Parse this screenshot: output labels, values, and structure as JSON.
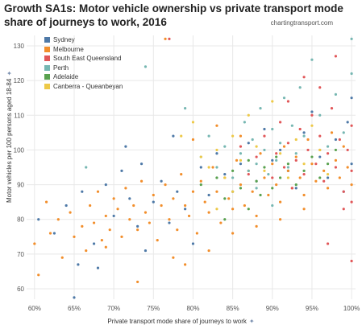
{
  "title": "Growth SA1s: Motor vehicle ownership vs private transport mode share of journeys to work, 2016",
  "source": "chartingtransport.com",
  "pin_icon": "pin-icon",
  "colors": {
    "Sydney": "#4e79a7",
    "Melbourne": "#f28e2b",
    "South East Queensland": "#e15759",
    "Perth": "#76b7b2",
    "Adelaide": "#59a14f",
    "Canberra - Queanbeyan": "#edc948"
  },
  "chart_data": {
    "type": "scatter",
    "title": "Growth SA1s: Motor vehicle ownership vs private transport mode share of journeys to work, 2016",
    "xlabel": "Private transport mode share of journeys to work",
    "ylabel": "Motor vehicles per 100 persons aged 18-84",
    "xlim": [
      59,
      100.5
    ],
    "ylim": [
      57,
      133
    ],
    "x_ticks": [
      "60%",
      "65%",
      "70%",
      "75%",
      "80%",
      "85%",
      "90%",
      "95%",
      "100%"
    ],
    "y_ticks": [
      "60",
      "70",
      "80",
      "90",
      "100",
      "110",
      "120",
      "130"
    ],
    "grid": true,
    "legend_position": "top-left",
    "series": [
      {
        "name": "Sydney",
        "points": [
          [
            60.5,
            80
          ],
          [
            62.5,
            76
          ],
          [
            64,
            84
          ],
          [
            65,
            57.5
          ],
          [
            65.5,
            67
          ],
          [
            66,
            88
          ],
          [
            67.5,
            73
          ],
          [
            68,
            66
          ],
          [
            69,
            90
          ],
          [
            70,
            81
          ],
          [
            71,
            94
          ],
          [
            71.5,
            101
          ],
          [
            72,
            86
          ],
          [
            73,
            78
          ],
          [
            73.5,
            96
          ],
          [
            74,
            71
          ],
          [
            75,
            85
          ],
          [
            76,
            91
          ],
          [
            77,
            79
          ],
          [
            77.5,
            104
          ],
          [
            78,
            88
          ],
          [
            79,
            83
          ],
          [
            80,
            73
          ],
          [
            81,
            95
          ],
          [
            82,
            87
          ],
          [
            83,
            99
          ],
          [
            84,
            93
          ],
          [
            85,
            88
          ],
          [
            86,
            96
          ],
          [
            87,
            102
          ],
          [
            88,
            91
          ],
          [
            89,
            106
          ],
          [
            90,
            97
          ],
          [
            91,
            100
          ],
          [
            92,
            94
          ],
          [
            93,
            89
          ],
          [
            94,
            105
          ],
          [
            95,
            111
          ],
          [
            96,
            98
          ],
          [
            97,
            92
          ],
          [
            98,
            103
          ],
          [
            99,
            88
          ],
          [
            100,
            115
          ],
          [
            100,
            96
          ],
          [
            99.5,
            108
          ]
        ]
      },
      {
        "name": "Melbourne",
        "points": [
          [
            60,
            73
          ],
          [
            60.5,
            64
          ],
          [
            61.5,
            85
          ],
          [
            62,
            76
          ],
          [
            63,
            80
          ],
          [
            63.5,
            69
          ],
          [
            64.5,
            82
          ],
          [
            65,
            75
          ],
          [
            66,
            78
          ],
          [
            66.5,
            71
          ],
          [
            67,
            84
          ],
          [
            67.5,
            79
          ],
          [
            68,
            88
          ],
          [
            68.5,
            74
          ],
          [
            69,
            81
          ],
          [
            69.5,
            77
          ],
          [
            70,
            86
          ],
          [
            70.5,
            83
          ],
          [
            71,
            75
          ],
          [
            71.5,
            89
          ],
          [
            72,
            80
          ],
          [
            72.5,
            84
          ],
          [
            73,
            77
          ],
          [
            73.5,
            91
          ],
          [
            74,
            82
          ],
          [
            74.5,
            79
          ],
          [
            75,
            87
          ],
          [
            75.5,
            74
          ],
          [
            76,
            84
          ],
          [
            76.5,
            90
          ],
          [
            77,
            80
          ],
          [
            77.5,
            86
          ],
          [
            78,
            77
          ],
          [
            78.5,
            93
          ],
          [
            79,
            84
          ],
          [
            79.5,
            81
          ],
          [
            80,
            88
          ],
          [
            80.5,
            76
          ],
          [
            81,
            91
          ],
          [
            81.5,
            85
          ],
          [
            82,
            82
          ],
          [
            82.5,
            95
          ],
          [
            83,
            88
          ],
          [
            83.5,
            79
          ],
          [
            84,
            92
          ],
          [
            84.5,
            86
          ],
          [
            85,
            83
          ],
          [
            85.5,
            97
          ],
          [
            86,
            90
          ],
          [
            86.5,
            84
          ],
          [
            87,
            94
          ],
          [
            87.5,
            88
          ],
          [
            88,
            81
          ],
          [
            88.5,
            99
          ],
          [
            89,
            92
          ],
          [
            89.5,
            87
          ],
          [
            90,
            96
          ],
          [
            90.5,
            90
          ],
          [
            91,
            85
          ],
          [
            91.5,
            101
          ],
          [
            92,
            94
          ],
          [
            92.5,
            89
          ],
          [
            93,
            98
          ],
          [
            93.5,
            92
          ],
          [
            94,
            87
          ],
          [
            94.5,
            103
          ],
          [
            95,
            96
          ],
          [
            95.5,
            91
          ],
          [
            96,
            100
          ],
          [
            96.5,
            94
          ],
          [
            97,
            89
          ],
          [
            97.5,
            105
          ],
          [
            98,
            97
          ],
          [
            98.5,
            92
          ],
          [
            99,
            101
          ],
          [
            99.5,
            95
          ],
          [
            100,
            90
          ],
          [
            80,
            103
          ],
          [
            83,
            107
          ],
          [
            86,
            104
          ],
          [
            76.5,
            132
          ],
          [
            77.5,
            69
          ],
          [
            73,
            62
          ],
          [
            69,
            72
          ],
          [
            82,
            71
          ],
          [
            79,
            67
          ],
          [
            85,
            76
          ],
          [
            88,
            78
          ],
          [
            91,
            80
          ],
          [
            94,
            83
          ]
        ]
      },
      {
        "name": "South East Queensland",
        "points": [
          [
            77,
            132
          ],
          [
            86,
            101
          ],
          [
            87,
            93
          ],
          [
            88,
            98
          ],
          [
            89,
            104
          ],
          [
            90,
            92
          ],
          [
            90.5,
            99
          ],
          [
            91,
            108
          ],
          [
            91.5,
            95
          ],
          [
            92,
            102
          ],
          [
            92.5,
            89
          ],
          [
            93,
            97
          ],
          [
            93.5,
            106
          ],
          [
            94,
            93
          ],
          [
            94.5,
            100
          ],
          [
            95,
            110
          ],
          [
            95.5,
            96
          ],
          [
            96,
            104
          ],
          [
            96.5,
            91
          ],
          [
            97,
            99
          ],
          [
            97.5,
            112
          ],
          [
            98,
            95
          ],
          [
            98.5,
            103
          ],
          [
            99,
            88
          ],
          [
            99.5,
            100
          ],
          [
            100,
            107
          ],
          [
            100,
            94
          ],
          [
            100,
            85
          ],
          [
            100,
            68
          ],
          [
            98,
            127
          ],
          [
            96,
            118
          ],
          [
            94,
            121
          ],
          [
            92,
            114
          ],
          [
            97,
            73
          ],
          [
            99,
            83
          ]
        ]
      },
      {
        "name": "Perth",
        "points": [
          [
            66.5,
            95
          ],
          [
            74,
            124
          ],
          [
            79,
            112
          ],
          [
            81,
            98
          ],
          [
            82,
            104
          ],
          [
            83,
            95
          ],
          [
            84,
            101
          ],
          [
            85,
            92
          ],
          [
            86,
            99
          ],
          [
            86.5,
            108
          ],
          [
            87,
            94
          ],
          [
            87.5,
            103
          ],
          [
            88,
            96
          ],
          [
            88.5,
            112
          ],
          [
            89,
            100
          ],
          [
            89.5,
            93
          ],
          [
            90,
            106
          ],
          [
            90.5,
            97
          ],
          [
            91,
            102
          ],
          [
            91.5,
            115
          ],
          [
            92,
            95
          ],
          [
            92.5,
            107
          ],
          [
            93,
            99
          ],
          [
            93.5,
            118
          ],
          [
            94,
            104
          ],
          [
            95,
            126
          ],
          [
            96,
            110
          ],
          [
            97,
            101
          ],
          [
            98,
            116
          ],
          [
            99,
            105
          ],
          [
            100,
            132
          ],
          [
            100,
            122
          ],
          [
            90,
            84
          ],
          [
            88,
            89
          ]
        ]
      },
      {
        "name": "Adelaide",
        "points": [
          [
            81,
            90
          ],
          [
            83,
            92
          ],
          [
            84,
            86
          ],
          [
            85,
            94
          ],
          [
            86,
            89
          ],
          [
            87,
            97
          ],
          [
            88,
            91
          ],
          [
            88.5,
            87
          ],
          [
            89,
            95
          ],
          [
            90,
            89
          ],
          [
            90.5,
            98
          ],
          [
            91,
            92
          ],
          [
            92,
            96
          ],
          [
            93,
            90
          ],
          [
            94,
            94
          ],
          [
            95,
            98
          ],
          [
            96,
            92
          ],
          [
            97,
            96
          ],
          [
            98,
            100
          ],
          [
            84,
            80
          ],
          [
            87,
            83
          ]
        ]
      },
      {
        "name": "Canberra - Queanbeyan",
        "points": [
          [
            78.5,
            104
          ],
          [
            80,
            108
          ],
          [
            81,
            98
          ],
          [
            82,
            95
          ],
          [
            83,
            100
          ],
          [
            84,
            92
          ],
          [
            85,
            104
          ],
          [
            86,
            97
          ],
          [
            87,
            110
          ],
          [
            88,
            101
          ],
          [
            89,
            94
          ],
          [
            90,
            114
          ],
          [
            91,
            99
          ],
          [
            92,
            92
          ],
          [
            93,
            103
          ],
          [
            94,
            96
          ],
          [
            95,
            107
          ],
          [
            96,
            100
          ],
          [
            97,
            93
          ],
          [
            83,
            83
          ],
          [
            85,
            88
          ]
        ]
      }
    ]
  }
}
